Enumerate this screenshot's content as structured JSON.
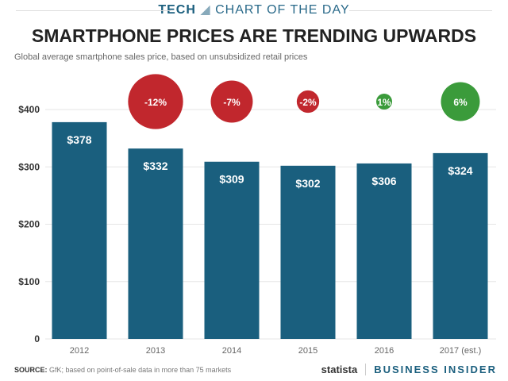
{
  "header": {
    "section": "TECH",
    "label": "CHART OF THE DAY"
  },
  "chart_data": {
    "type": "bar",
    "title": "SMARTPHONE PRICES ARE TRENDING UPWARDS",
    "subtitle": "Global average smartphone sales price, based on unsubsidized retail prices",
    "categories": [
      "2012",
      "2013",
      "2014",
      "2015",
      "2016",
      "2017 (est.)"
    ],
    "values": [
      378,
      332,
      309,
      302,
      306,
      324
    ],
    "value_labels": [
      "$378",
      "$332",
      "$309",
      "$302",
      "$306",
      "$324"
    ],
    "change_labels": [
      "",
      "-12%",
      "-7%",
      "-2%",
      "1%",
      "6%"
    ],
    "changes": [
      null,
      -12,
      -7,
      -2,
      1,
      6
    ],
    "yticks": [
      0,
      100,
      200,
      300,
      400
    ],
    "ytick_labels": [
      "0",
      "$100",
      "$200",
      "$300",
      "$400"
    ],
    "ylim": [
      0,
      400
    ],
    "grid": true,
    "colors": {
      "bar": "#1a5f7e",
      "negative": "#c1272d",
      "positive": "#3b9b3b"
    }
  },
  "footer": {
    "source_label": "SOURCE:",
    "source_text": " GfK; based on point-of-sale data in more than 75 markets",
    "logo1": "statista",
    "logo2": "BUSINESS INSIDER"
  }
}
